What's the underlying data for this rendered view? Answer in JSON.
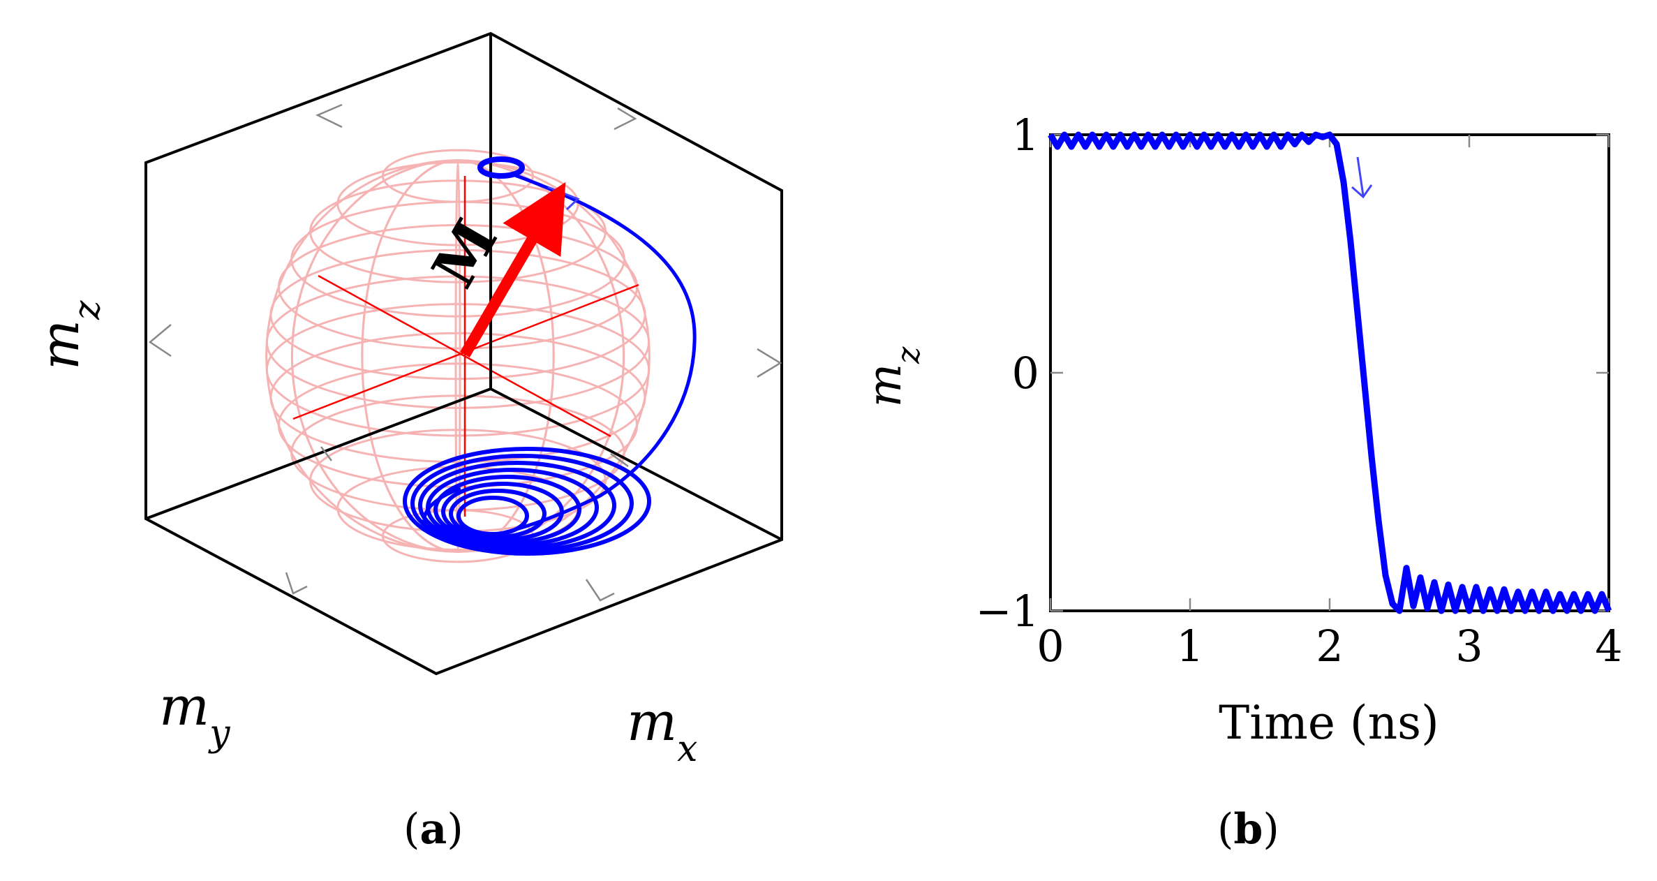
{
  "chart_data": [
    {
      "type": "3d-line",
      "panel_label": {
        "open": "(",
        "letter": "a",
        "close": ")"
      },
      "axes": {
        "x": {
          "label_base": "m",
          "label_sub": "x"
        },
        "y": {
          "label_base": "m",
          "label_sub": "y"
        },
        "z": {
          "label_base": "m",
          "label_sub": "z"
        }
      },
      "vector_label": "M",
      "range": [
        -1,
        1
      ],
      "colors": {
        "trajectory": "#0000ff",
        "vector": "#ff0000",
        "sphere": "#f4a6a6",
        "frame": "#000000"
      }
    },
    {
      "type": "line",
      "panel_label": {
        "open": "(",
        "letter": "b",
        "close": ")"
      },
      "xlabel": "Time (ns)",
      "ylabel": {
        "base": "m",
        "sub": "z"
      },
      "xlim": [
        0,
        4
      ],
      "ylim": [
        -1,
        1
      ],
      "xticks": [
        0,
        1,
        2,
        3,
        4
      ],
      "yticks": [
        -1,
        0,
        1
      ],
      "ytick_labels": [
        "−1",
        "0",
        "1"
      ],
      "series": [
        {
          "color": "#0000ff",
          "x": [
            0.0,
            0.05,
            0.1,
            0.15,
            0.2,
            0.25,
            0.3,
            0.35,
            0.4,
            0.45,
            0.5,
            0.55,
            0.6,
            0.65,
            0.7,
            0.75,
            0.8,
            0.85,
            0.9,
            0.95,
            1.0,
            1.05,
            1.1,
            1.15,
            1.2,
            1.25,
            1.3,
            1.35,
            1.4,
            1.45,
            1.5,
            1.55,
            1.6,
            1.65,
            1.7,
            1.75,
            1.8,
            1.85,
            1.9,
            1.95,
            2.0,
            2.05,
            2.1,
            2.15,
            2.2,
            2.25,
            2.3,
            2.35,
            2.4,
            2.45,
            2.5,
            2.55,
            2.6,
            2.65,
            2.7,
            2.75,
            2.8,
            2.85,
            2.9,
            2.95,
            3.0,
            3.05,
            3.1,
            3.15,
            3.2,
            3.25,
            3.3,
            3.35,
            3.4,
            3.45,
            3.5,
            3.55,
            3.6,
            3.65,
            3.7,
            3.75,
            3.8,
            3.85,
            3.9,
            3.95,
            4.0
          ],
          "y": [
            1.0,
            0.95,
            1.0,
            0.95,
            1.0,
            0.95,
            1.0,
            0.95,
            1.0,
            0.95,
            1.0,
            0.95,
            1.0,
            0.95,
            1.0,
            0.95,
            1.0,
            0.95,
            1.0,
            0.95,
            1.0,
            0.95,
            1.0,
            0.95,
            1.0,
            0.95,
            1.0,
            0.95,
            1.0,
            0.95,
            1.0,
            0.95,
            1.0,
            0.95,
            1.0,
            0.96,
            1.0,
            0.97,
            1.0,
            0.99,
            1.0,
            0.96,
            0.8,
            0.55,
            0.25,
            -0.05,
            -0.35,
            -0.62,
            -0.85,
            -0.97,
            -1.0,
            -0.82,
            -0.98,
            -0.86,
            -0.99,
            -0.88,
            -1.0,
            -0.89,
            -1.0,
            -0.9,
            -1.0,
            -0.9,
            -1.0,
            -0.91,
            -1.0,
            -0.91,
            -1.0,
            -0.92,
            -1.0,
            -0.92,
            -1.0,
            -0.92,
            -1.0,
            -0.93,
            -1.0,
            -0.93,
            -1.0,
            -0.93,
            -1.0,
            -0.93,
            -1.0
          ]
        }
      ]
    }
  ]
}
